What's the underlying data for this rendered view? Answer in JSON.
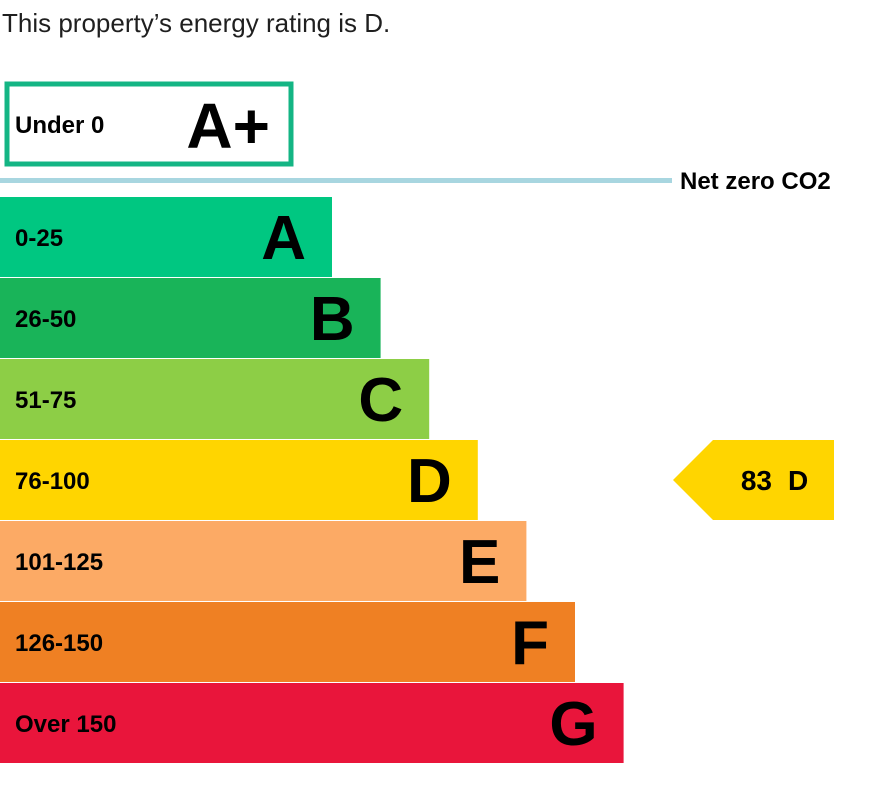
{
  "summary_text": "This property’s energy rating is D.",
  "chart_data": {
    "type": "bar",
    "top_band": {
      "range": "Under 0",
      "letter": "A+",
      "border_color": "#14b584"
    },
    "net_zero": {
      "label": "Net zero CO2",
      "line_color": "#a8d6e0"
    },
    "bands": [
      {
        "range": "0-25",
        "letter": "A",
        "color": "#00c781"
      },
      {
        "range": "26-50",
        "letter": "B",
        "color": "#19b459"
      },
      {
        "range": "51-75",
        "letter": "C",
        "color": "#8dce46"
      },
      {
        "range": "76-100",
        "letter": "D",
        "color": "#ffd500"
      },
      {
        "range": "101-125",
        "letter": "E",
        "color": "#fcaa65"
      },
      {
        "range": "126-150",
        "letter": "F",
        "color": "#ef8023"
      },
      {
        "range": "Over 150",
        "letter": "G",
        "color": "#e9153b"
      }
    ],
    "current_rating": {
      "score": "83",
      "letter": "D",
      "band_index": 3,
      "color": "#ffd500"
    }
  }
}
